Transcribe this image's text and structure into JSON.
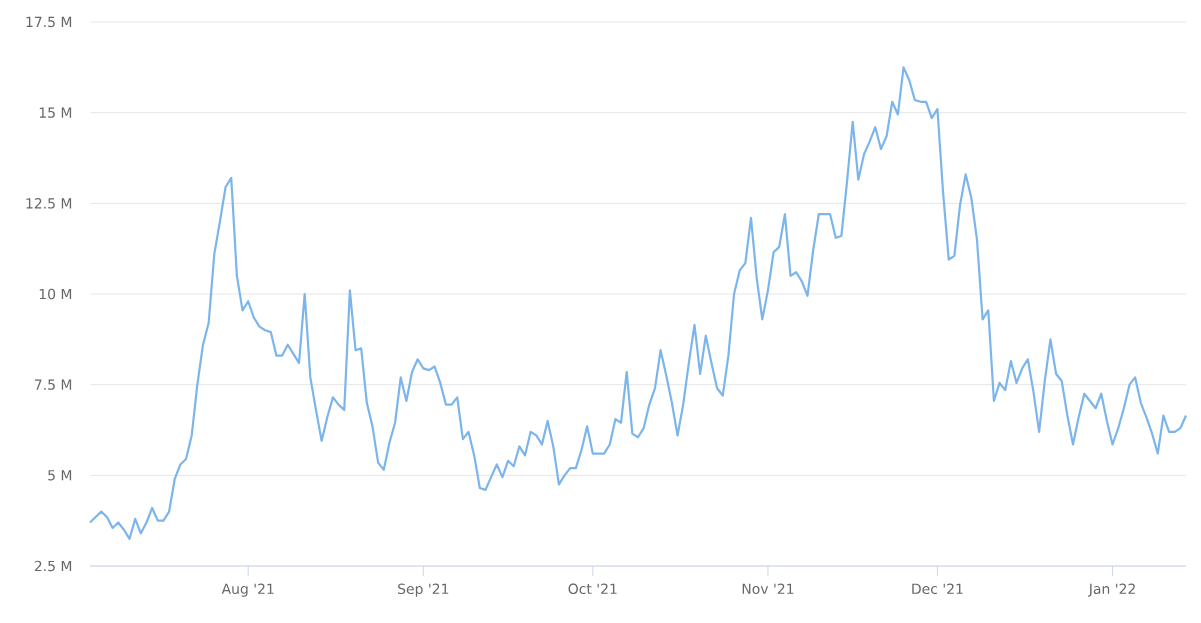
{
  "chart_data": {
    "type": "line",
    "color": "#7cb5ec",
    "grid": "y",
    "marker": "none",
    "line_style": "solid",
    "xlim": [
      "2021-07-04",
      "2022-01-14"
    ],
    "ylim": [
      2.5,
      17.5
    ],
    "xticks": [
      {
        "value": "2021-08-01",
        "label": "Aug '21"
      },
      {
        "value": "2021-09-01",
        "label": "Sep '21"
      },
      {
        "value": "2021-10-01",
        "label": "Oct '21"
      },
      {
        "value": "2021-11-01",
        "label": "Nov '21"
      },
      {
        "value": "2021-12-01",
        "label": "Dec '21"
      },
      {
        "value": "2022-01-01",
        "label": "Jan '22"
      }
    ],
    "yticks": [
      {
        "value": 2.5,
        "label": "2.5 M"
      },
      {
        "value": 5,
        "label": "5 M"
      },
      {
        "value": 7.5,
        "label": "7.5 M"
      },
      {
        "value": 10,
        "label": "10 M"
      },
      {
        "value": 12.5,
        "label": "12.5 M"
      },
      {
        "value": 15,
        "label": "15 M"
      },
      {
        "value": 17.5,
        "label": "17.5 M"
      }
    ],
    "x": [
      "2021-07-04",
      "2021-07-05",
      "2021-07-06",
      "2021-07-07",
      "2021-07-08",
      "2021-07-09",
      "2021-07-10",
      "2021-07-11",
      "2021-07-12",
      "2021-07-13",
      "2021-07-14",
      "2021-07-15",
      "2021-07-16",
      "2021-07-17",
      "2021-07-18",
      "2021-07-19",
      "2021-07-20",
      "2021-07-21",
      "2021-07-22",
      "2021-07-23",
      "2021-07-24",
      "2021-07-25",
      "2021-07-26",
      "2021-07-27",
      "2021-07-28",
      "2021-07-29",
      "2021-07-30",
      "2021-07-31",
      "2021-08-01",
      "2021-08-02",
      "2021-08-03",
      "2021-08-04",
      "2021-08-05",
      "2021-08-06",
      "2021-08-07",
      "2021-08-08",
      "2021-08-09",
      "2021-08-10",
      "2021-08-11",
      "2021-08-12",
      "2021-08-13",
      "2021-08-14",
      "2021-08-15",
      "2021-08-16",
      "2021-08-17",
      "2021-08-18",
      "2021-08-19",
      "2021-08-20",
      "2021-08-21",
      "2021-08-22",
      "2021-08-23",
      "2021-08-24",
      "2021-08-25",
      "2021-08-26",
      "2021-08-27",
      "2021-08-28",
      "2021-08-29",
      "2021-08-30",
      "2021-08-31",
      "2021-09-01",
      "2021-09-02",
      "2021-09-03",
      "2021-09-04",
      "2021-09-05",
      "2021-09-06",
      "2021-09-07",
      "2021-09-08",
      "2021-09-09",
      "2021-09-10",
      "2021-09-11",
      "2021-09-12",
      "2021-09-13",
      "2021-09-14",
      "2021-09-15",
      "2021-09-16",
      "2021-09-17",
      "2021-09-18",
      "2021-09-19",
      "2021-09-20",
      "2021-09-21",
      "2021-09-22",
      "2021-09-23",
      "2021-09-24",
      "2021-09-25",
      "2021-09-26",
      "2021-09-27",
      "2021-09-28",
      "2021-09-29",
      "2021-09-30",
      "2021-10-01",
      "2021-10-02",
      "2021-10-03",
      "2021-10-04",
      "2021-10-05",
      "2021-10-06",
      "2021-10-07",
      "2021-10-08",
      "2021-10-09",
      "2021-10-10",
      "2021-10-11",
      "2021-10-12",
      "2021-10-13",
      "2021-10-14",
      "2021-10-15",
      "2021-10-16",
      "2021-10-17",
      "2021-10-18",
      "2021-10-19",
      "2021-10-20",
      "2021-10-21",
      "2021-10-22",
      "2021-10-23",
      "2021-10-24",
      "2021-10-25",
      "2021-10-26",
      "2021-10-27",
      "2021-10-28",
      "2021-10-29",
      "2021-10-30",
      "2021-10-31",
      "2021-11-01",
      "2021-11-02",
      "2021-11-03",
      "2021-11-04",
      "2021-11-05",
      "2021-11-06",
      "2021-11-07",
      "2021-11-08",
      "2021-11-09",
      "2021-11-10",
      "2021-11-11",
      "2021-11-12",
      "2021-11-13",
      "2021-11-14",
      "2021-11-15",
      "2021-11-16",
      "2021-11-17",
      "2021-11-18",
      "2021-11-19",
      "2021-11-20",
      "2021-11-21",
      "2021-11-22",
      "2021-11-23",
      "2021-11-24",
      "2021-11-25",
      "2021-11-26",
      "2021-11-27",
      "2021-11-28",
      "2021-11-29",
      "2021-11-30",
      "2021-12-01",
      "2021-12-02",
      "2021-12-03",
      "2021-12-04",
      "2021-12-05",
      "2021-12-06",
      "2021-12-07",
      "2021-12-08",
      "2021-12-09",
      "2021-12-10",
      "2021-12-11",
      "2021-12-12",
      "2021-12-13",
      "2021-12-14",
      "2021-12-15",
      "2021-12-16",
      "2021-12-17",
      "2021-12-18",
      "2021-12-19",
      "2021-12-20",
      "2021-12-21",
      "2021-12-22",
      "2021-12-23",
      "2021-12-24",
      "2021-12-25",
      "2021-12-26",
      "2021-12-27",
      "2021-12-28",
      "2021-12-29",
      "2021-12-30",
      "2021-12-31",
      "2022-01-01",
      "2022-01-02",
      "2022-01-03",
      "2022-01-04",
      "2022-01-05",
      "2022-01-06",
      "2022-01-07",
      "2022-01-08",
      "2022-01-09",
      "2022-01-10",
      "2022-01-11",
      "2022-01-12",
      "2022-01-13",
      "2022-01-14"
    ],
    "values": [
      3.7,
      3.85,
      4.0,
      3.85,
      3.55,
      3.7,
      3.5,
      3.25,
      3.8,
      3.4,
      3.7,
      4.1,
      3.75,
      3.75,
      4.0,
      4.9,
      5.3,
      5.45,
      6.1,
      7.5,
      8.6,
      9.2,
      11.1,
      12.0,
      12.95,
      13.2,
      10.5,
      9.55,
      9.8,
      9.35,
      9.1,
      9.0,
      8.95,
      8.3,
      8.3,
      8.6,
      8.35,
      8.1,
      10.0,
      7.7,
      6.8,
      5.95,
      6.6,
      7.15,
      6.95,
      6.8,
      10.1,
      8.45,
      8.5,
      7.0,
      6.35,
      5.35,
      5.15,
      5.9,
      6.45,
      7.7,
      7.05,
      7.85,
      8.2,
      7.95,
      7.9,
      8.0,
      7.55,
      6.95,
      6.95,
      7.15,
      6.0,
      6.2,
      5.55,
      4.65,
      4.6,
      4.95,
      5.3,
      4.95,
      5.4,
      5.25,
      5.8,
      5.55,
      6.2,
      6.1,
      5.85,
      6.5,
      5.8,
      4.75,
      5.0,
      5.2,
      5.2,
      5.7,
      6.35,
      5.6,
      5.6,
      5.6,
      5.85,
      6.55,
      6.45,
      7.85,
      6.15,
      6.05,
      6.3,
      6.95,
      7.4,
      8.45,
      7.75,
      7.0,
      6.1,
      6.95,
      8.1,
      9.15,
      7.8,
      8.85,
      8.1,
      7.4,
      7.2,
      8.3,
      10.0,
      10.65,
      10.85,
      12.1,
      10.45,
      9.3,
      10.1,
      11.15,
      11.3,
      12.2,
      10.5,
      10.6,
      10.35,
      9.95,
      11.2,
      12.2,
      12.2,
      12.2,
      11.55,
      11.6,
      13.1,
      14.75,
      13.15,
      13.85,
      14.2,
      14.6,
      14.0,
      14.35,
      15.3,
      14.95,
      16.25,
      15.9,
      15.35,
      15.3,
      15.3,
      14.85,
      15.1,
      12.8,
      10.95,
      11.05,
      12.45,
      13.3,
      12.65,
      11.5,
      9.3,
      9.55,
      7.05,
      7.55,
      7.35,
      8.15,
      7.55,
      7.95,
      8.2,
      7.3,
      6.2,
      7.6,
      8.75,
      7.8,
      7.6,
      6.65,
      5.85,
      6.6,
      7.25,
      7.05,
      6.85,
      7.25,
      6.5,
      5.85,
      6.3,
      6.85,
      7.5,
      7.7,
      7.0,
      6.6,
      6.15,
      5.6,
      6.65,
      6.2,
      6.2,
      6.3,
      6.65
    ]
  }
}
